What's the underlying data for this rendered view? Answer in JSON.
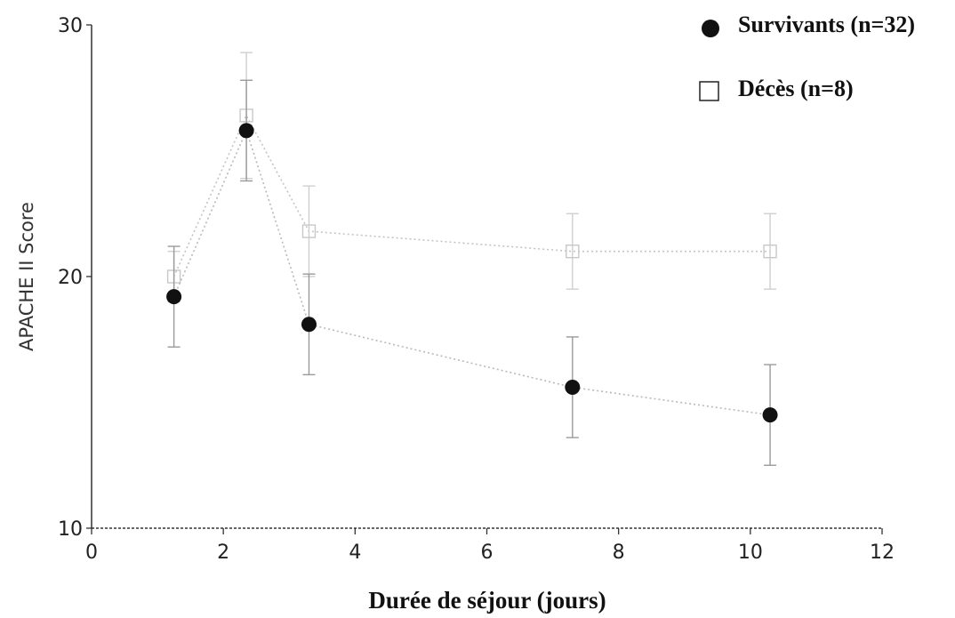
{
  "chart_data": {
    "type": "line",
    "xlabel": "Durée de séjour (jours)",
    "ylabel": "APACHE II Score",
    "xlim": [
      0,
      12
    ],
    "ylim": [
      10,
      30
    ],
    "xticks": [
      "0",
      "2",
      "4",
      "6",
      "8",
      "10",
      "12"
    ],
    "yticks": [
      "10",
      "20",
      "30"
    ],
    "grid": false,
    "legend_position": "top-right",
    "series": [
      {
        "name": "Survivants (n=32)",
        "marker": "filled-circle",
        "color": "#111111",
        "x": [
          1.25,
          2.35,
          3.3,
          7.3,
          10.3
        ],
        "y": [
          19.2,
          25.8,
          18.1,
          15.6,
          14.5
        ],
        "err": [
          2.0,
          2.0,
          2.0,
          2.0,
          2.0
        ]
      },
      {
        "name": "Décès (n=8)",
        "marker": "open-square",
        "color": "#bbbbbb",
        "x": [
          1.25,
          2.35,
          3.3,
          7.3,
          10.3
        ],
        "y": [
          20.0,
          26.4,
          21.8,
          21.0,
          21.0
        ],
        "err": [
          1.0,
          2.5,
          1.8,
          1.5,
          1.5
        ]
      }
    ]
  }
}
